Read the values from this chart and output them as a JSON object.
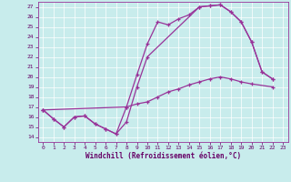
{
  "xlabel": "Windchill (Refroidissement éolien,°C)",
  "xlim": [
    -0.5,
    23.5
  ],
  "ylim": [
    13.5,
    27.5
  ],
  "xticks": [
    0,
    1,
    2,
    3,
    4,
    5,
    6,
    7,
    8,
    9,
    10,
    11,
    12,
    13,
    14,
    15,
    16,
    17,
    18,
    19,
    20,
    21,
    22,
    23
  ],
  "yticks": [
    14,
    15,
    16,
    17,
    18,
    19,
    20,
    21,
    22,
    23,
    24,
    25,
    26,
    27
  ],
  "bg_color": "#c8ecec",
  "line_color": "#993399",
  "grid_color": "#ffffff",
  "line1_x": [
    0,
    1,
    2,
    3,
    4,
    5,
    6,
    7,
    8,
    9,
    10,
    11,
    12,
    13,
    14,
    15,
    16,
    17,
    18,
    19,
    20,
    21,
    22
  ],
  "line1_y": [
    16.7,
    15.8,
    15.0,
    16.0,
    16.1,
    15.3,
    14.8,
    14.3,
    17.0,
    20.2,
    23.3,
    25.5,
    25.2,
    25.8,
    26.2,
    27.0,
    27.1,
    27.2,
    26.5,
    25.5,
    23.5,
    20.5,
    19.8
  ],
  "line2_x": [
    0,
    1,
    2,
    3,
    4,
    5,
    6,
    7,
    8,
    9,
    10,
    15,
    16,
    17,
    18,
    19,
    20,
    21,
    22
  ],
  "line2_y": [
    16.7,
    15.8,
    15.0,
    16.0,
    16.1,
    15.3,
    14.8,
    14.3,
    15.5,
    19.0,
    22.0,
    27.0,
    27.1,
    27.2,
    26.5,
    25.5,
    23.5,
    20.5,
    19.8
  ],
  "line3_x": [
    0,
    8,
    9,
    10,
    11,
    12,
    13,
    14,
    15,
    16,
    17,
    18,
    19,
    20,
    22
  ],
  "line3_y": [
    16.7,
    17.0,
    17.3,
    17.5,
    18.0,
    18.5,
    18.8,
    19.2,
    19.5,
    19.8,
    20.0,
    19.8,
    19.5,
    19.3,
    19.0
  ]
}
